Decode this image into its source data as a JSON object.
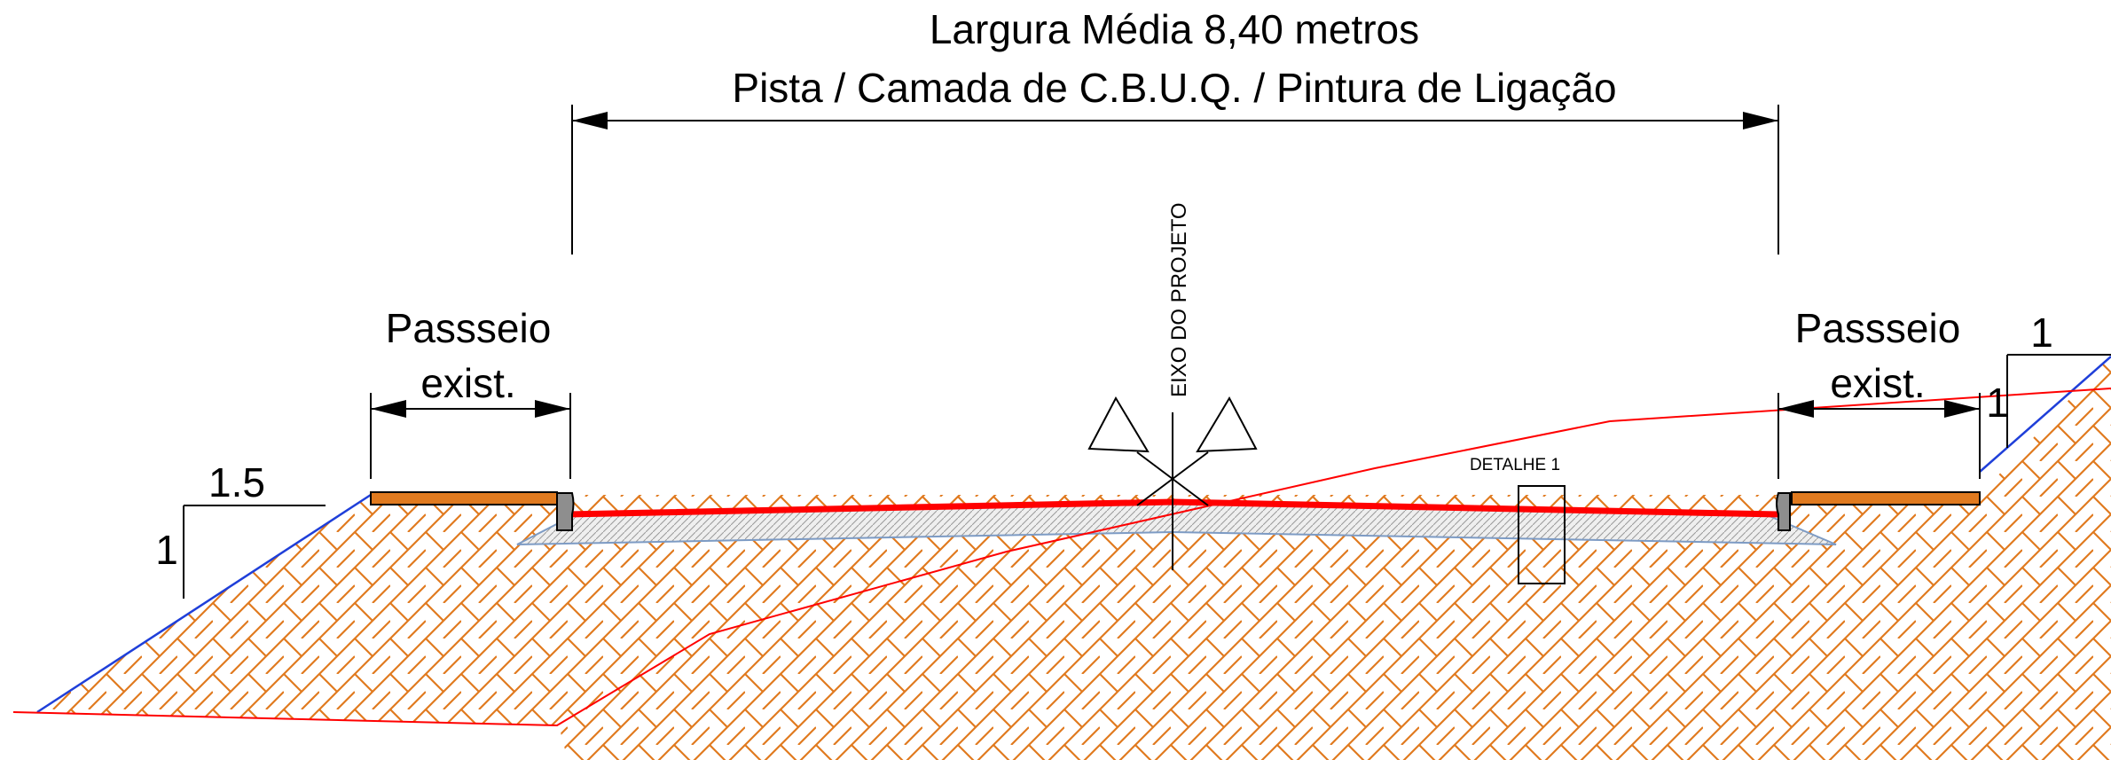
{
  "title": {
    "line1": "Largura Média 8,40 metros",
    "line2": "Pista / Camada de C.B.U.Q. / Pintura de Ligação"
  },
  "left_sidewalk": {
    "line1": "Passseio",
    "line2": "exist."
  },
  "right_sidewalk": {
    "line1": "Passseio",
    "line2": "exist."
  },
  "axis_label": "EIXO DO PROJETO",
  "detail_label": "DETALHE 1",
  "left_slope": {
    "horizontal": "1.5",
    "vertical": "1"
  },
  "right_slope": {
    "horizontal": "1",
    "vertical": "1"
  },
  "colors": {
    "hatch": "#E07A1F",
    "sidewalk": "#E07A1F",
    "asphalt": "#FF0000",
    "slope_line": "#1F3FD9",
    "base_layer": "#C8C8C8",
    "terrain": "#FF0000"
  }
}
